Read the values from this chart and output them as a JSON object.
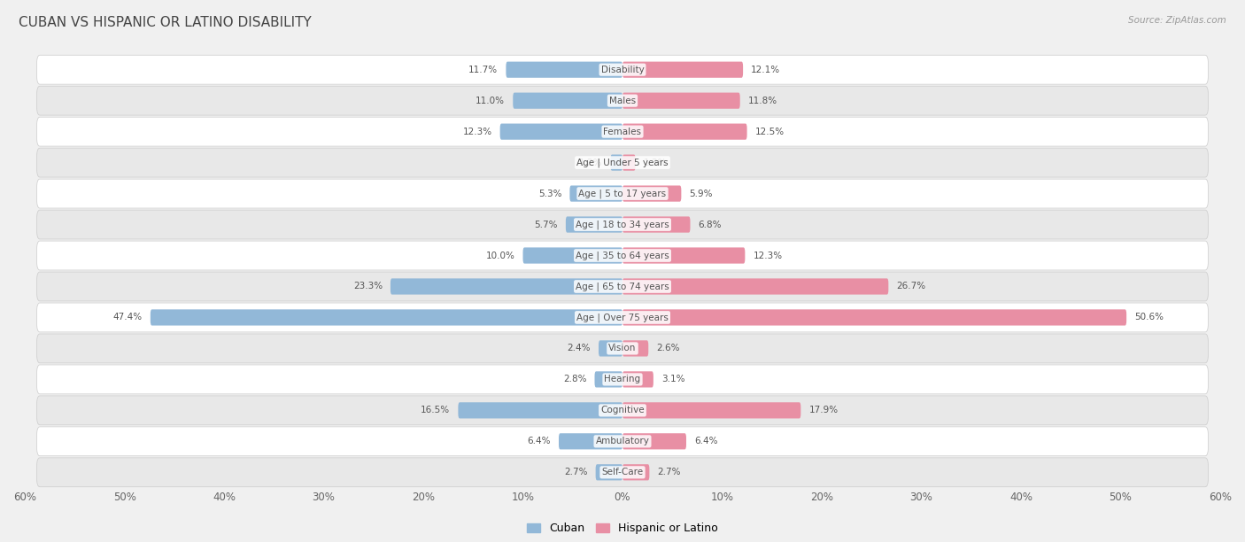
{
  "title": "CUBAN VS HISPANIC OR LATINO DISABILITY",
  "source": "Source: ZipAtlas.com",
  "categories": [
    "Disability",
    "Males",
    "Females",
    "Age | Under 5 years",
    "Age | 5 to 17 years",
    "Age | 18 to 34 years",
    "Age | 35 to 64 years",
    "Age | 65 to 74 years",
    "Age | Over 75 years",
    "Vision",
    "Hearing",
    "Cognitive",
    "Ambulatory",
    "Self-Care"
  ],
  "cuban": [
    11.7,
    11.0,
    12.3,
    1.2,
    5.3,
    5.7,
    10.0,
    23.3,
    47.4,
    2.4,
    2.8,
    16.5,
    6.4,
    2.7
  ],
  "hispanic": [
    12.1,
    11.8,
    12.5,
    1.3,
    5.9,
    6.8,
    12.3,
    26.7,
    50.6,
    2.6,
    3.1,
    17.9,
    6.4,
    2.7
  ],
  "cuban_color": "#92b8d8",
  "hispanic_color": "#e88fa4",
  "cuban_label": "Cuban",
  "hispanic_label": "Hispanic or Latino",
  "xlim": 60.0,
  "bar_height": 0.52,
  "bg_color": "#f0f0f0",
  "row_bg_light": "#ffffff",
  "row_bg_dark": "#e8e8e8",
  "title_fontsize": 11,
  "label_fontsize": 7.5,
  "value_fontsize": 7.5,
  "axis_label_fontsize": 8.5
}
